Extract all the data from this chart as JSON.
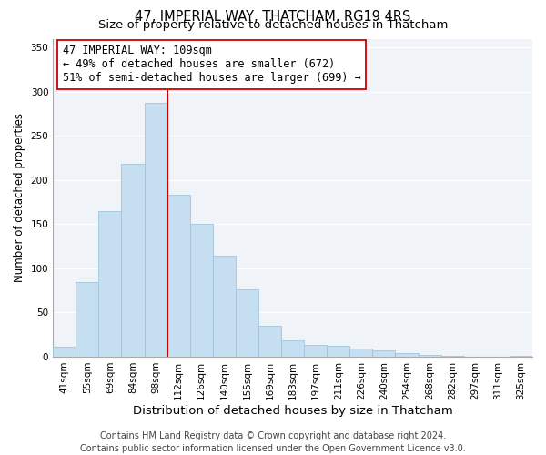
{
  "title": "47, IMPERIAL WAY, THATCHAM, RG19 4RS",
  "subtitle": "Size of property relative to detached houses in Thatcham",
  "xlabel": "Distribution of detached houses by size in Thatcham",
  "ylabel": "Number of detached properties",
  "bar_labels": [
    "41sqm",
    "55sqm",
    "69sqm",
    "84sqm",
    "98sqm",
    "112sqm",
    "126sqm",
    "140sqm",
    "155sqm",
    "169sqm",
    "183sqm",
    "197sqm",
    "211sqm",
    "226sqm",
    "240sqm",
    "254sqm",
    "268sqm",
    "282sqm",
    "297sqm",
    "311sqm",
    "325sqm"
  ],
  "bar_heights": [
    11,
    84,
    165,
    218,
    287,
    183,
    150,
    114,
    76,
    35,
    18,
    13,
    12,
    9,
    7,
    4,
    2,
    1,
    0,
    0,
    1
  ],
  "bar_color": "#c6dff0",
  "bar_edge_color": "#a0c4dc",
  "vline_index": 5,
  "vline_color": "#cc0000",
  "annotation_text": "47 IMPERIAL WAY: 109sqm\n← 49% of detached houses are smaller (672)\n51% of semi-detached houses are larger (699) →",
  "annotation_box_facecolor": "#ffffff",
  "annotation_box_edgecolor": "#cc0000",
  "ylim": [
    0,
    360
  ],
  "yticks": [
    0,
    50,
    100,
    150,
    200,
    250,
    300,
    350
  ],
  "footer_line1": "Contains HM Land Registry data © Crown copyright and database right 2024.",
  "footer_line2": "Contains public sector information licensed under the Open Government Licence v3.0.",
  "title_fontsize": 10.5,
  "subtitle_fontsize": 9.5,
  "xlabel_fontsize": 9.5,
  "ylabel_fontsize": 8.5,
  "tick_fontsize": 7.5,
  "annotation_fontsize": 8.5,
  "footer_fontsize": 7.0,
  "bg_color": "#f0f4f8"
}
